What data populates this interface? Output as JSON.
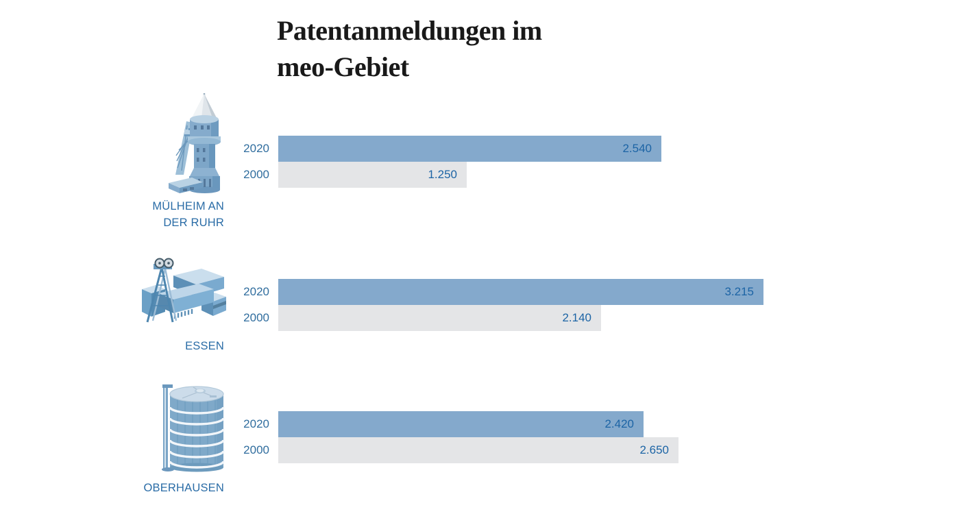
{
  "header": {
    "title": "Patentanmeldungen im meo-Gebiet",
    "title_lines": "Patentanmeldungen im\nmeo-Gebiet"
  },
  "chart_data": {
    "type": "bar",
    "orientation": "horizontal",
    "title": "Patentanmeldungen im meo-Gebiet",
    "categories": [
      "Mülheim an der Ruhr",
      "Essen",
      "Oberhausen"
    ],
    "series": [
      {
        "name": "2020",
        "values": [
          2540,
          3215,
          2420
        ],
        "color": "#84a9cc"
      },
      {
        "name": "2000",
        "values": [
          1250,
          2140,
          2650
        ],
        "color": "#e4e5e7"
      }
    ],
    "value_labels": {
      "2020": [
        "2.540",
        "3.215",
        "2.420"
      ],
      "2000": [
        "1.250",
        "2.140",
        "2.650"
      ]
    },
    "xlim": [
      0,
      3215
    ],
    "grid": false,
    "legend": "none",
    "bar_labels_inside": true
  },
  "colors": {
    "bar_2020": "#84a9cc",
    "bar_2000": "#e4e5e7",
    "year_label": "#306d9e",
    "value_label": "#1c64a5",
    "city_label": "#2a6ca6",
    "title": "#191919"
  },
  "groups": [
    {
      "city": "MÜLHEIM AN\nDER RUHR",
      "icon": "water-tower-icon",
      "bars": [
        {
          "year": "2020",
          "value": 2540,
          "label": "2.540"
        },
        {
          "year": "2000",
          "value": 1250,
          "label": "1.250"
        }
      ]
    },
    {
      "city": "ESSEN",
      "icon": "colliery-headframe-icon",
      "bars": [
        {
          "year": "2020",
          "value": 3215,
          "label": "3.215"
        },
        {
          "year": "2000",
          "value": 2140,
          "label": "2.140"
        }
      ]
    },
    {
      "city": "OBERHAUSEN",
      "icon": "gasometer-icon",
      "bars": [
        {
          "year": "2020",
          "value": 2420,
          "label": "2.420"
        },
        {
          "year": "2000",
          "value": 2650,
          "label": "2.650"
        }
      ]
    }
  ]
}
